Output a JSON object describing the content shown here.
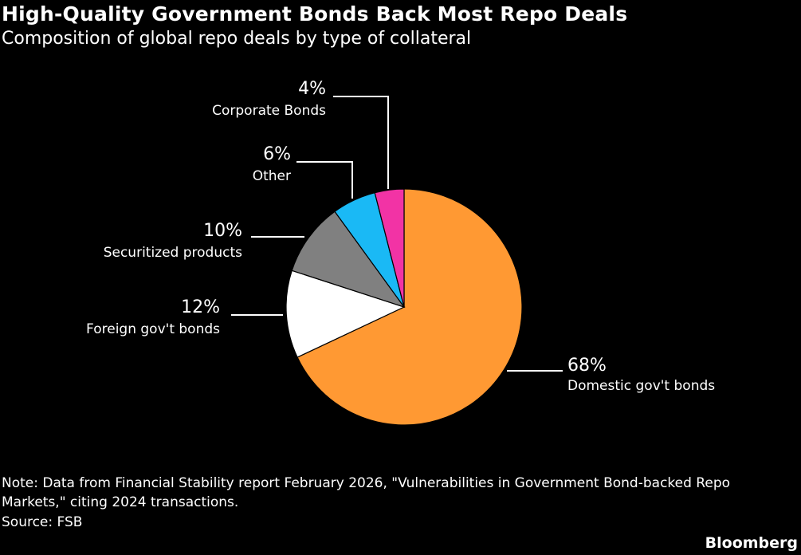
{
  "header": {
    "title": "High-Quality Government Bonds Back Most Repo Deals",
    "subtitle": "Composition of global repo deals by type of collateral"
  },
  "chart_data": {
    "type": "pie",
    "title": "High-Quality Government Bonds Back Most Repo Deals",
    "subtitle": "Composition of global repo deals by type of collateral",
    "unit": "%",
    "slices": [
      {
        "label": "Domestic gov't bonds",
        "value": 68,
        "value_label": "68%",
        "color": "#FF9933"
      },
      {
        "label": "Foreign gov't bonds",
        "value": 12,
        "value_label": "12%",
        "color": "#FFFFFF"
      },
      {
        "label": "Securitized products",
        "value": 10,
        "value_label": "10%",
        "color": "#808080"
      },
      {
        "label": "Other",
        "value": 6,
        "value_label": "6%",
        "color": "#1AB9F5"
      },
      {
        "label": "Corporate Bonds",
        "value": 4,
        "value_label": "4%",
        "color": "#F233A5"
      }
    ]
  },
  "footer": {
    "note": "Note: Data from Financial Stability report February 2026, \"Vulnerabilities in Government Bond-backed Repo Markets,\" citing 2024 transactions.",
    "source": "Source: FSB",
    "brand": "Bloomberg"
  }
}
